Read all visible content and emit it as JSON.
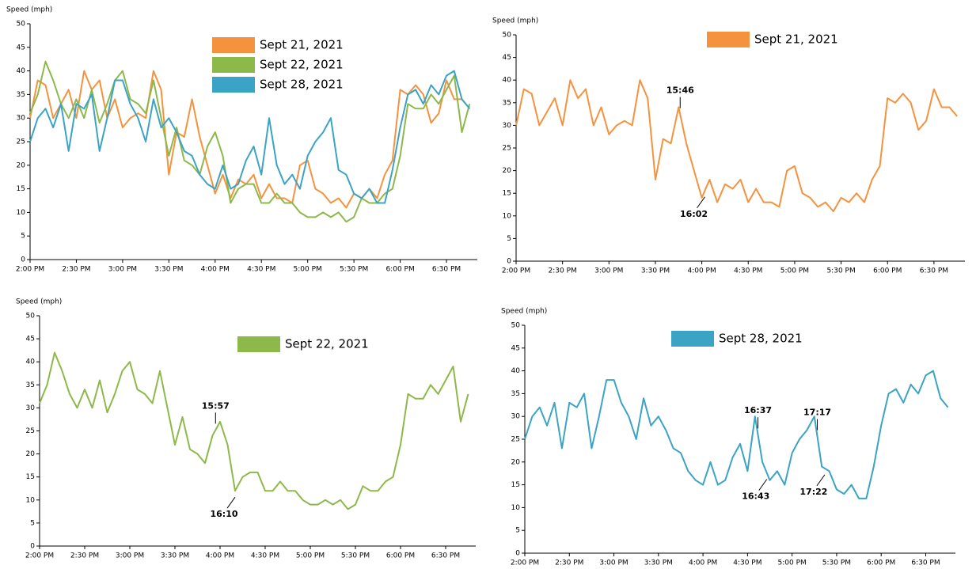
{
  "chart_data": [
    {
      "type": "line",
      "y_label": "Speed (mph)",
      "x": [
        "14:00",
        "14:05",
        "14:10",
        "14:15",
        "14:20",
        "14:25",
        "14:30",
        "14:35",
        "14:40",
        "14:45",
        "14:50",
        "14:55",
        "15:00",
        "15:05",
        "15:10",
        "15:15",
        "15:20",
        "15:25",
        "15:30",
        "15:35",
        "15:40",
        "15:45",
        "15:50",
        "15:55",
        "16:00",
        "16:05",
        "16:10",
        "16:15",
        "16:20",
        "16:25",
        "16:30",
        "16:35",
        "16:40",
        "16:45",
        "16:50",
        "16:55",
        "17:00",
        "17:05",
        "17:10",
        "17:15",
        "17:20",
        "17:25",
        "17:30",
        "17:35",
        "17:40",
        "17:45",
        "17:50",
        "17:55",
        "18:00",
        "18:05",
        "18:10",
        "18:15",
        "18:20",
        "18:25",
        "18:30",
        "18:35",
        "18:40",
        "18:45"
      ],
      "series": [
        {
          "name": "Sept 21, 2021",
          "color": "#f5923e",
          "values": [
            30,
            38,
            37,
            30,
            33,
            36,
            30,
            40,
            36,
            38,
            30,
            34,
            28,
            30,
            31,
            30,
            40,
            36,
            18,
            27,
            26,
            34,
            26,
            20,
            14,
            18,
            13,
            17,
            16,
            18,
            13,
            16,
            13,
            13,
            12,
            20,
            21,
            15,
            14,
            12,
            13,
            11,
            14,
            13,
            15,
            13,
            18,
            21,
            36,
            35,
            37,
            35,
            29,
            31,
            38,
            34,
            34,
            32
          ]
        },
        {
          "name": "Sept 22, 2021",
          "color": "#8db84a",
          "values": [
            31,
            35,
            42,
            38,
            33,
            30,
            34,
            30,
            36,
            29,
            33,
            38,
            40,
            34,
            33,
            31,
            38,
            30,
            22,
            28,
            21,
            20,
            18,
            24,
            27,
            22,
            12,
            15,
            16,
            16,
            12,
            12,
            14,
            12,
            12,
            10,
            9,
            9,
            10,
            9,
            10,
            8,
            9,
            13,
            12,
            12,
            14,
            15,
            22,
            33,
            32,
            32,
            35,
            33,
            36,
            39,
            27,
            33
          ]
        },
        {
          "name": "Sept 28, 2021",
          "color": "#3ba3c4",
          "values": [
            25,
            30,
            32,
            28,
            33,
            23,
            33,
            32,
            35,
            23,
            30,
            38,
            38,
            33,
            30,
            25,
            34,
            28,
            30,
            27,
            23,
            22,
            18,
            16,
            15,
            20,
            15,
            16,
            21,
            24,
            18,
            30,
            20,
            16,
            18,
            15,
            22,
            25,
            27,
            30,
            19,
            18,
            14,
            13,
            15,
            12,
            12,
            19,
            28,
            35,
            36,
            33,
            37,
            35,
            39,
            40,
            34,
            32
          ]
        }
      ],
      "xlim": [
        "14:00",
        "18:50"
      ],
      "xticks": [
        {
          "value": "14:00",
          "label": "2:00 PM"
        },
        {
          "value": "14:30",
          "label": "2:30 PM"
        },
        {
          "value": "15:00",
          "label": "3:00 PM"
        },
        {
          "value": "15:30",
          "label": "3:30 PM"
        },
        {
          "value": "16:00",
          "label": "4:00 PM"
        },
        {
          "value": "16:30",
          "label": "4:30 PM"
        },
        {
          "value": "17:00",
          "label": "5:00 PM"
        },
        {
          "value": "17:30",
          "label": "5:30 PM"
        },
        {
          "value": "18:00",
          "label": "6:00 PM"
        },
        {
          "value": "18:30",
          "label": "6:30 PM"
        }
      ],
      "ylim": [
        0,
        50
      ],
      "yticks": [
        0,
        5,
        10,
        15,
        20,
        25,
        30,
        35,
        40,
        45,
        50
      ],
      "annotations": []
    },
    {
      "type": "line",
      "y_label": "Speed (mph)",
      "x": [
        "14:00",
        "14:05",
        "14:10",
        "14:15",
        "14:20",
        "14:25",
        "14:30",
        "14:35",
        "14:40",
        "14:45",
        "14:50",
        "14:55",
        "15:00",
        "15:05",
        "15:10",
        "15:15",
        "15:20",
        "15:25",
        "15:30",
        "15:35",
        "15:40",
        "15:45",
        "15:50",
        "15:55",
        "16:00",
        "16:05",
        "16:10",
        "16:15",
        "16:20",
        "16:25",
        "16:30",
        "16:35",
        "16:40",
        "16:45",
        "16:50",
        "16:55",
        "17:00",
        "17:05",
        "17:10",
        "17:15",
        "17:20",
        "17:25",
        "17:30",
        "17:35",
        "17:40",
        "17:45",
        "17:50",
        "17:55",
        "18:00",
        "18:05",
        "18:10",
        "18:15",
        "18:20",
        "18:25",
        "18:30",
        "18:35",
        "18:40",
        "18:45"
      ],
      "series": [
        {
          "name": "Sept 21, 2021",
          "color": "#f5923e",
          "values": [
            30,
            38,
            37,
            30,
            33,
            36,
            30,
            40,
            36,
            38,
            30,
            34,
            28,
            30,
            31,
            30,
            40,
            36,
            18,
            27,
            26,
            34,
            26,
            20,
            14,
            18,
            13,
            17,
            16,
            18,
            13,
            16,
            13,
            13,
            12,
            20,
            21,
            15,
            14,
            12,
            13,
            11,
            14,
            13,
            15,
            13,
            18,
            21,
            36,
            35,
            37,
            35,
            29,
            31,
            38,
            34,
            34,
            32
          ]
        }
      ],
      "xlim": [
        "14:00",
        "18:50"
      ],
      "xticks": [
        {
          "value": "14:00",
          "label": "2:00 PM"
        },
        {
          "value": "14:30",
          "label": "2:30 PM"
        },
        {
          "value": "15:00",
          "label": "3:00 PM"
        },
        {
          "value": "15:30",
          "label": "3:30 PM"
        },
        {
          "value": "16:00",
          "label": "4:00 PM"
        },
        {
          "value": "16:30",
          "label": "4:30 PM"
        },
        {
          "value": "17:00",
          "label": "5:00 PM"
        },
        {
          "value": "17:30",
          "label": "5:30 PM"
        },
        {
          "value": "18:00",
          "label": "6:00 PM"
        },
        {
          "value": "18:30",
          "label": "6:30 PM"
        }
      ],
      "ylim": [
        0,
        50
      ],
      "yticks": [
        0,
        5,
        10,
        15,
        20,
        25,
        30,
        35,
        40,
        45,
        50
      ],
      "annotations": [
        {
          "text": "15:46",
          "side": "above"
        },
        {
          "text": "16:02",
          "side": "below"
        }
      ]
    },
    {
      "type": "line",
      "y_label": "Speed (mph)",
      "x": [
        "14:00",
        "14:05",
        "14:10",
        "14:15",
        "14:20",
        "14:25",
        "14:30",
        "14:35",
        "14:40",
        "14:45",
        "14:50",
        "14:55",
        "15:00",
        "15:05",
        "15:10",
        "15:15",
        "15:20",
        "15:25",
        "15:30",
        "15:35",
        "15:40",
        "15:45",
        "15:50",
        "15:55",
        "16:00",
        "16:05",
        "16:10",
        "16:15",
        "16:20",
        "16:25",
        "16:30",
        "16:35",
        "16:40",
        "16:45",
        "16:50",
        "16:55",
        "17:00",
        "17:05",
        "17:10",
        "17:15",
        "17:20",
        "17:25",
        "17:30",
        "17:35",
        "17:40",
        "17:45",
        "17:50",
        "17:55",
        "18:00",
        "18:05",
        "18:10",
        "18:15",
        "18:20",
        "18:25",
        "18:30",
        "18:35",
        "18:40",
        "18:45"
      ],
      "series": [
        {
          "name": "Sept 22, 2021",
          "color": "#8db84a",
          "values": [
            31,
            35,
            42,
            38,
            33,
            30,
            34,
            30,
            36,
            29,
            33,
            38,
            40,
            34,
            33,
            31,
            38,
            30,
            22,
            28,
            21,
            20,
            18,
            24,
            27,
            22,
            12,
            15,
            16,
            16,
            12,
            12,
            14,
            12,
            12,
            10,
            9,
            9,
            10,
            9,
            10,
            8,
            9,
            13,
            12,
            12,
            14,
            15,
            22,
            33,
            32,
            32,
            35,
            33,
            36,
            39,
            27,
            33
          ]
        }
      ],
      "xlim": [
        "14:00",
        "18:50"
      ],
      "xticks": [
        {
          "value": "14:00",
          "label": "2:00 PM"
        },
        {
          "value": "14:30",
          "label": "2:30 PM"
        },
        {
          "value": "15:00",
          "label": "3:00 PM"
        },
        {
          "value": "15:30",
          "label": "3:30 PM"
        },
        {
          "value": "16:00",
          "label": "4:00 PM"
        },
        {
          "value": "16:30",
          "label": "4:30 PM"
        },
        {
          "value": "17:00",
          "label": "5:00 PM"
        },
        {
          "value": "17:30",
          "label": "5:30 PM"
        },
        {
          "value": "18:00",
          "label": "6:00 PM"
        },
        {
          "value": "18:30",
          "label": "6:30 PM"
        }
      ],
      "ylim": [
        0,
        50
      ],
      "yticks": [
        0,
        5,
        10,
        15,
        20,
        25,
        30,
        35,
        40,
        45,
        50
      ],
      "annotations": [
        {
          "text": "15:57",
          "side": "above"
        },
        {
          "text": "16:10",
          "side": "below"
        }
      ]
    },
    {
      "type": "line",
      "y_label": "Speed (mph)",
      "x": [
        "14:00",
        "14:05",
        "14:10",
        "14:15",
        "14:20",
        "14:25",
        "14:30",
        "14:35",
        "14:40",
        "14:45",
        "14:50",
        "14:55",
        "15:00",
        "15:05",
        "15:10",
        "15:15",
        "15:20",
        "15:25",
        "15:30",
        "15:35",
        "15:40",
        "15:45",
        "15:50",
        "15:55",
        "16:00",
        "16:05",
        "16:10",
        "16:15",
        "16:20",
        "16:25",
        "16:30",
        "16:35",
        "16:40",
        "16:45",
        "16:50",
        "16:55",
        "17:00",
        "17:05",
        "17:10",
        "17:15",
        "17:20",
        "17:25",
        "17:30",
        "17:35",
        "17:40",
        "17:45",
        "17:50",
        "17:55",
        "18:00",
        "18:05",
        "18:10",
        "18:15",
        "18:20",
        "18:25",
        "18:30",
        "18:35",
        "18:40",
        "18:45"
      ],
      "series": [
        {
          "name": "Sept 28, 2021",
          "color": "#3ba3c4",
          "values": [
            25,
            30,
            32,
            28,
            33,
            23,
            33,
            32,
            35,
            23,
            30,
            38,
            38,
            33,
            30,
            25,
            34,
            28,
            30,
            27,
            23,
            22,
            18,
            16,
            15,
            20,
            15,
            16,
            21,
            24,
            18,
            30,
            20,
            16,
            18,
            15,
            22,
            25,
            27,
            30,
            19,
            18,
            14,
            13,
            15,
            12,
            12,
            19,
            28,
            35,
            36,
            33,
            37,
            35,
            39,
            40,
            34,
            32
          ]
        }
      ],
      "xlim": [
        "14:00",
        "18:50"
      ],
      "xticks": [
        {
          "value": "14:00",
          "label": "2:00 PM"
        },
        {
          "value": "14:30",
          "label": "2:30 PM"
        },
        {
          "value": "15:00",
          "label": "3:00 PM"
        },
        {
          "value": "15:30",
          "label": "3:30 PM"
        },
        {
          "value": "16:00",
          "label": "4:00 PM"
        },
        {
          "value": "16:30",
          "label": "4:30 PM"
        },
        {
          "value": "17:00",
          "label": "5:00 PM"
        },
        {
          "value": "17:30",
          "label": "5:30 PM"
        },
        {
          "value": "18:00",
          "label": "6:00 PM"
        },
        {
          "value": "18:30",
          "label": "6:30 PM"
        }
      ],
      "ylim": [
        0,
        50
      ],
      "yticks": [
        0,
        5,
        10,
        15,
        20,
        25,
        30,
        35,
        40,
        45,
        50
      ],
      "annotations": [
        {
          "text": "16:37",
          "side": "above"
        },
        {
          "text": "16:43",
          "side": "below"
        },
        {
          "text": "17:17",
          "side": "above"
        },
        {
          "text": "17:22",
          "side": "below"
        }
      ]
    }
  ]
}
